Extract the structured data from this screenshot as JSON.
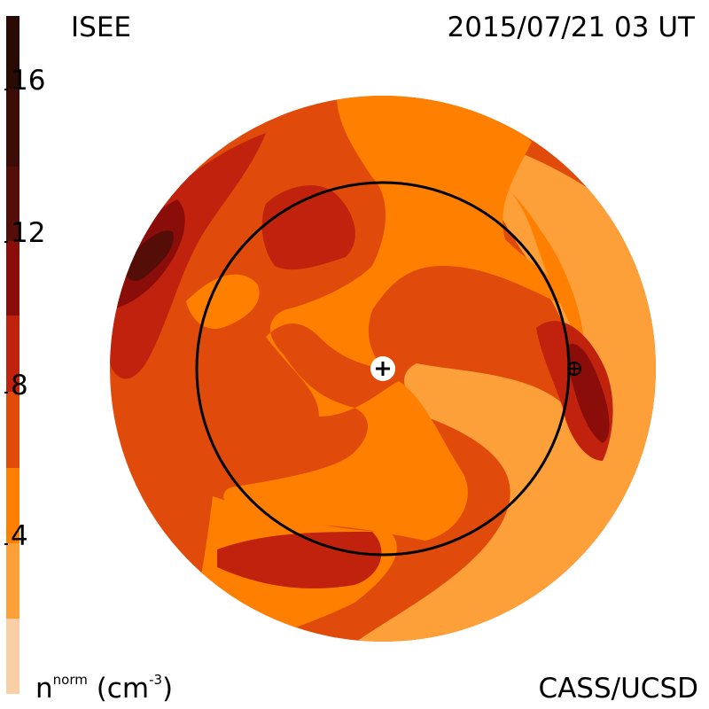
{
  "header": {
    "model": "ISEE",
    "timestamp": "2015/07/21 03 UT"
  },
  "footer": {
    "units_base": "n",
    "units_sup": "norm",
    "units_rest_pre": " (cm",
    "units_exp": "-3",
    "units_rest_post": ")",
    "credit": "CASS/UCSD"
  },
  "colorbar": {
    "ticks": [
      "16",
      "12",
      "8",
      "4"
    ],
    "colors": [
      "#2a0a05",
      "#550d08",
      "#8a0d0a",
      "#c0220e",
      "#e04b0b",
      "#ff7f00",
      "#fda03a",
      "#fbcfa6"
    ]
  },
  "map": {
    "colors": {
      "level1": "#fda03a",
      "level2": "#ff7f00",
      "level3": "#e04b0b",
      "level4": "#c0220e",
      "level5": "#8a0d0a",
      "level6": "#550d08"
    },
    "icons": [
      "sun-marker-icon",
      "earth-marker-icon"
    ]
  }
}
